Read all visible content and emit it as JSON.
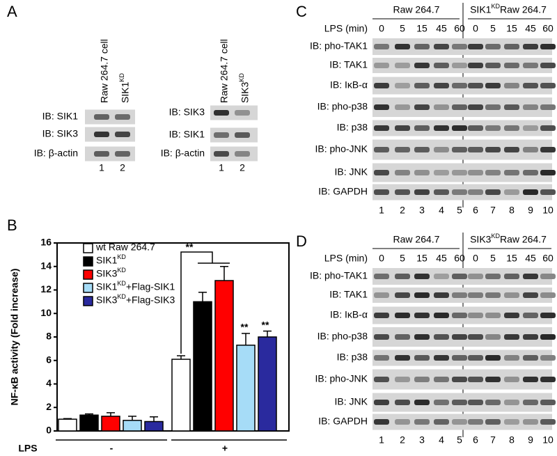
{
  "panel_a": {
    "label": "A",
    "left": {
      "columns": [
        "Raw 264.7 cell",
        "SIK1KD"
      ],
      "rows": [
        "IB: SIK1",
        "IB: SIK3",
        "IB: β-actin"
      ],
      "lanes": [
        "1",
        "2"
      ]
    },
    "right": {
      "columns": [
        "Raw 264.7 cell",
        "SIK3KD"
      ],
      "rows": [
        "IB: SIK3",
        "IB: SIK1",
        "IB: β-actin"
      ],
      "lanes": [
        "1",
        "2"
      ]
    }
  },
  "panel_c": {
    "label": "C",
    "groups": [
      "Raw 264.7",
      "SIK1KDRaw 264.7"
    ],
    "time_label": "LPS (min)",
    "times": [
      "0",
      "5",
      "15",
      "45",
      "60",
      "0",
      "5",
      "15",
      "45",
      "60"
    ],
    "rows": [
      "IB: pho-TAK1",
      "IB: TAK1",
      "IB: IκB-α",
      "IB: pho-p38",
      "IB: p38",
      "IB: pho-JNK",
      "IB: JNK",
      "IB: GAPDH"
    ],
    "lanes": [
      "1",
      "2",
      "3",
      "4",
      "5",
      "6",
      "7",
      "8",
      "9",
      "10"
    ]
  },
  "panel_d": {
    "label": "D",
    "groups": [
      "Raw 264.7",
      "SIK3KDRaw 264.7"
    ],
    "time_label": "LPS (min)",
    "times": [
      "0",
      "5",
      "15",
      "45",
      "60",
      "0",
      "5",
      "15",
      "45",
      "60"
    ],
    "rows": [
      "IB: pho-TAK1",
      "IB: TAK1",
      "IB: IκB-α",
      "IB: pho-p38",
      "IB: p38",
      "IB: pho-JNK",
      "IB: JNK",
      "IB: GAPDH"
    ],
    "lanes": [
      "1",
      "2",
      "3",
      "4",
      "5",
      "6",
      "7",
      "8",
      "9",
      "10"
    ]
  },
  "chart_data": {
    "type": "bar",
    "panel_label": "B",
    "y_label": "NF-κB activity (Fold increase)",
    "x_label": "LPS",
    "categories": [
      "-",
      "+"
    ],
    "ylim": [
      0,
      16
    ],
    "yticks": [
      0,
      2,
      4,
      6,
      8,
      10,
      12,
      14,
      16
    ],
    "series": [
      {
        "name": "wt Raw 264.7",
        "color": "#ffffff",
        "values": [
          1.0,
          6.1
        ],
        "errors": [
          0.05,
          0.3
        ]
      },
      {
        "name": "SIK1KD",
        "color": "#000000",
        "values": [
          1.35,
          11.0
        ],
        "errors": [
          0.1,
          0.8
        ]
      },
      {
        "name": "SIK3KD",
        "color": "#ff0000",
        "values": [
          1.25,
          12.8
        ],
        "errors": [
          0.3,
          1.2
        ]
      },
      {
        "name": "SIK1KD+Flag-SIK1",
        "color": "#a6dcf7",
        "values": [
          0.9,
          7.3
        ],
        "errors": [
          0.35,
          1.0
        ]
      },
      {
        "name": "SIK3KD+Flag-SIK3",
        "color": "#2a2a9e",
        "values": [
          0.8,
          8.0
        ],
        "errors": [
          0.4,
          0.5
        ]
      }
    ],
    "annotations": [
      "**",
      "**",
      "**"
    ]
  }
}
